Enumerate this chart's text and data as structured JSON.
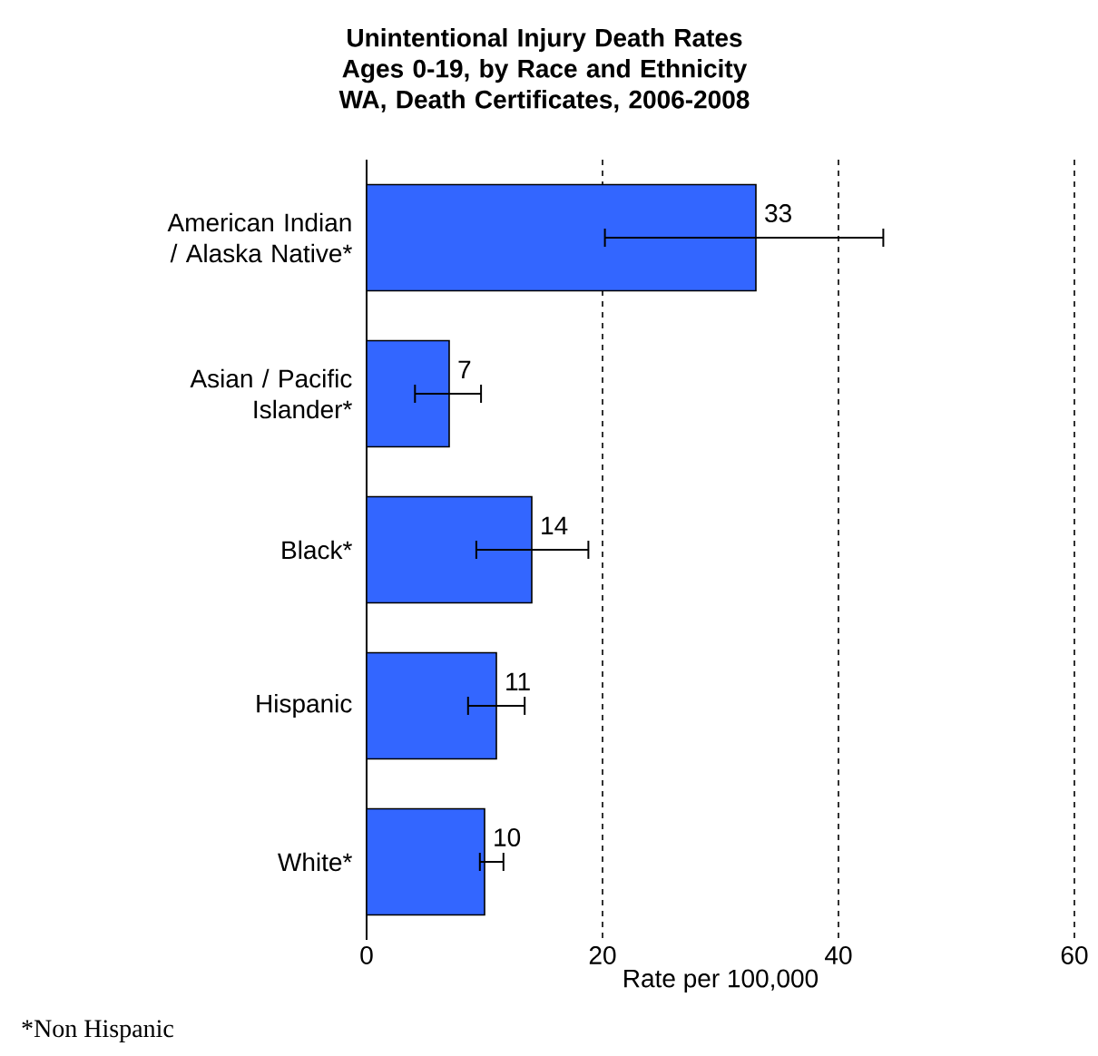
{
  "chart_data": {
    "type": "bar",
    "orientation": "horizontal",
    "title": "Unintentional Injury Death Rates Ages 0-19, by Race and Ethnicity WA, Death Certificates, 2006-2008",
    "xlabel": "Rate per 100,000",
    "categories": [
      "American Indian / Alaska Native*",
      "Asian / Pacific Islander*",
      "Black*",
      "Hispanic",
      "White*"
    ],
    "values": [
      33,
      7,
      14,
      11,
      10
    ],
    "errors": [
      [
        20.2,
        43.8
      ],
      [
        4.1,
        9.7
      ],
      [
        9.3,
        18.8
      ],
      [
        8.6,
        13.4
      ],
      [
        9.6,
        11.6
      ]
    ],
    "color": "#3366ff",
    "data_labels": true,
    "xlim": [
      0,
      60
    ],
    "xticks": [
      0,
      20,
      40,
      60
    ],
    "grid": "x",
    "annotations": [
      "*Non Hispanic"
    ]
  }
}
